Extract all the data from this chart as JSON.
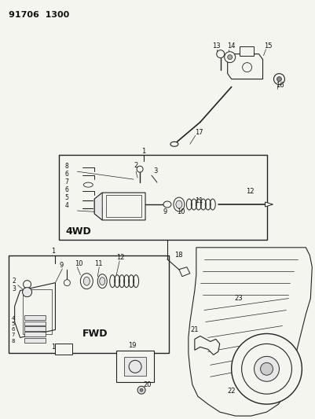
{
  "title": "91706  1300",
  "bg_color": "#f5f5f0",
  "line_color": "#222222",
  "text_color": "#111111",
  "figsize": [
    4.01,
    5.33
  ],
  "dpi": 100,
  "label_4wd": "4WD",
  "label_fwd": "FWD"
}
